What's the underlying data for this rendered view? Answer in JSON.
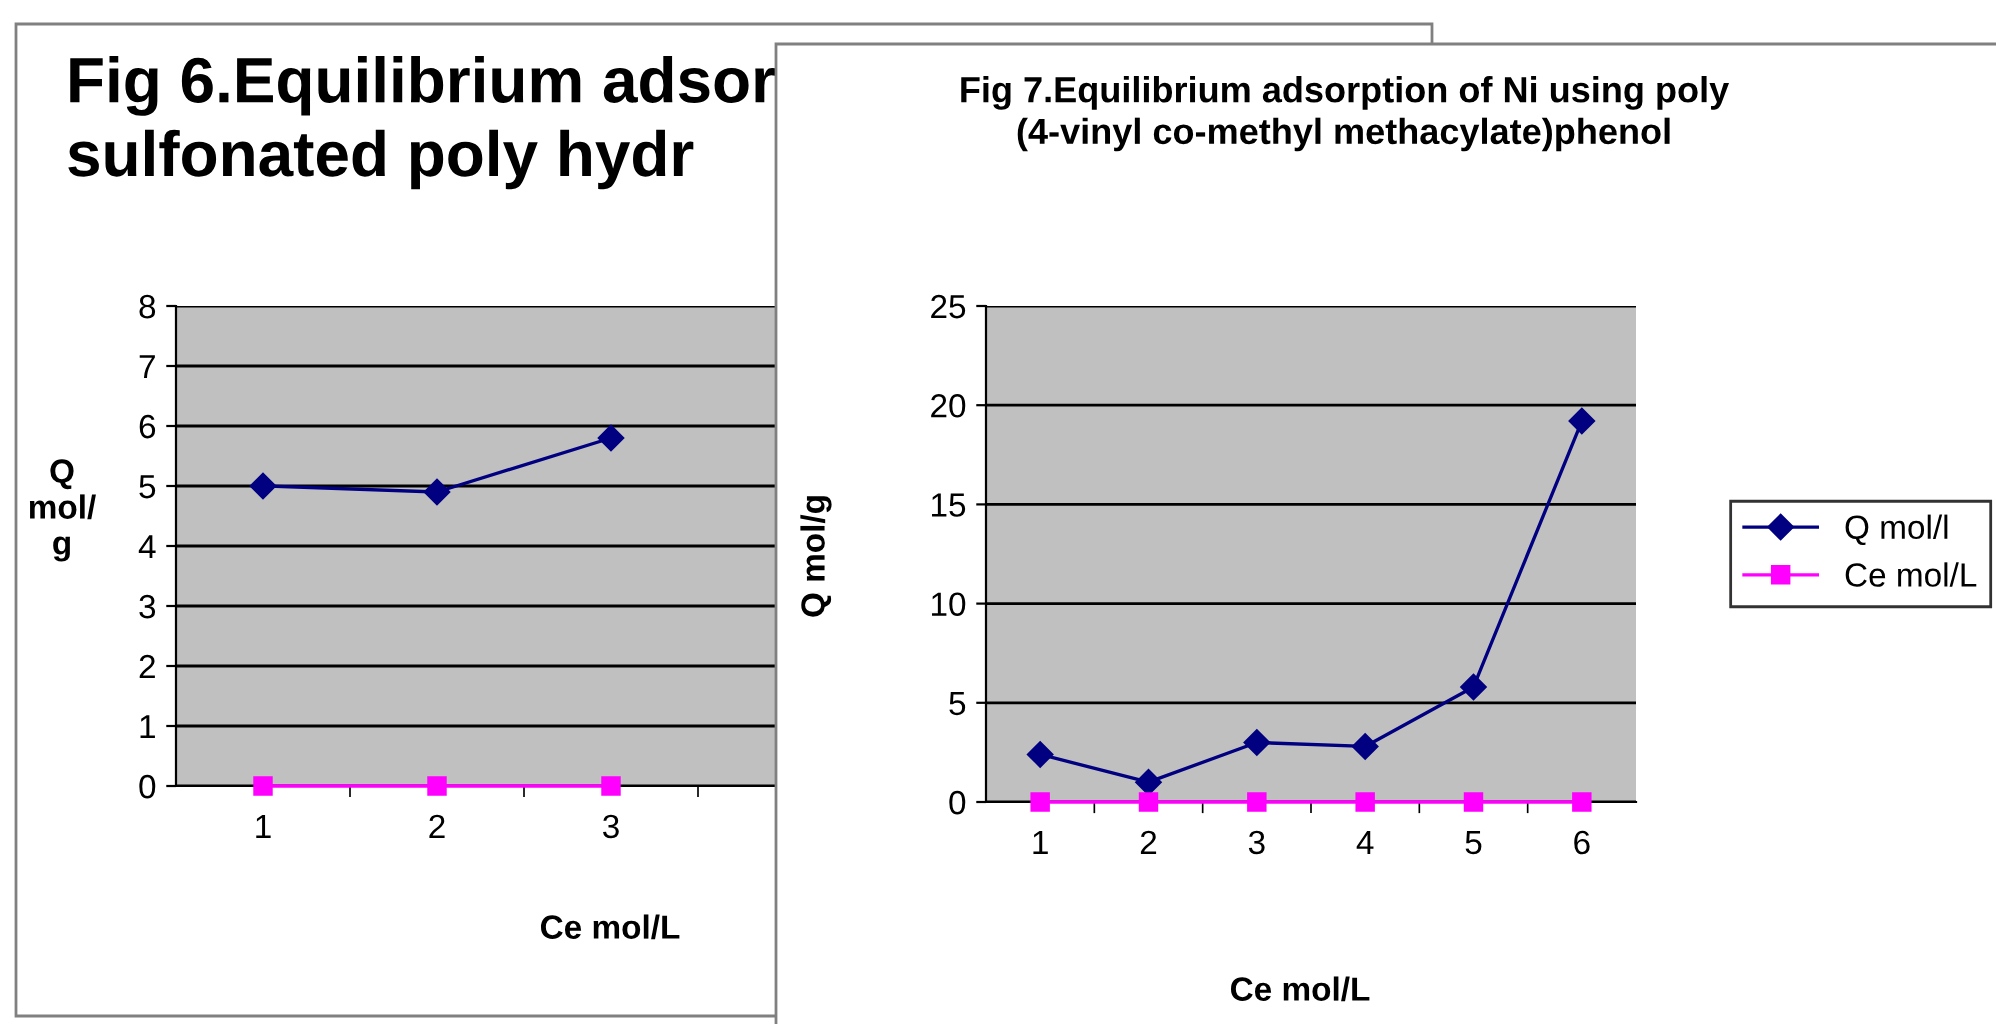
{
  "chart_data": [
    {
      "type": "line",
      "title": "Fig 6.Equilibrium adsor\nsulfonated poly hydr",
      "xlabel": "Ce mol/L",
      "ylabel": "Q\nmol/\ng",
      "categories": [
        "1",
        "2",
        "3",
        null
      ],
      "ylim": [
        0,
        8
      ],
      "yticks": [
        0,
        1,
        2,
        3,
        4,
        5,
        6,
        7,
        8
      ],
      "grid": "y",
      "legend": false,
      "series": [
        {
          "color": "#000080",
          "marker": "diamond",
          "values": [
            5.0,
            4.9,
            5.8,
            null
          ]
        },
        {
          "color": "#ff00ff",
          "marker": "square",
          "values": [
            0,
            0,
            0,
            null
          ]
        }
      ]
    },
    {
      "type": "line",
      "title": "Fig 7.Equilibrium adsorption of Ni using poly\n(4-vinyl co-methyl methacylate)phenol",
      "xlabel": "Ce mol/L",
      "ylabel": "Q mol/g",
      "categories": [
        "1",
        "2",
        "3",
        "4",
        "5",
        "6"
      ],
      "ylim": [
        0,
        25
      ],
      "yticks": [
        0,
        5,
        10,
        15,
        20,
        25
      ],
      "grid": "y",
      "legend": "right",
      "series": [
        {
          "name": "Q mol/l",
          "color": "#000080",
          "marker": "diamond",
          "values": [
            2.4,
            1.0,
            3.0,
            2.8,
            5.8,
            19.2
          ]
        },
        {
          "name": "Ce mol/L",
          "color": "#ff00ff",
          "marker": "square",
          "values": [
            0,
            0,
            0,
            0,
            0,
            0
          ]
        }
      ]
    }
  ]
}
